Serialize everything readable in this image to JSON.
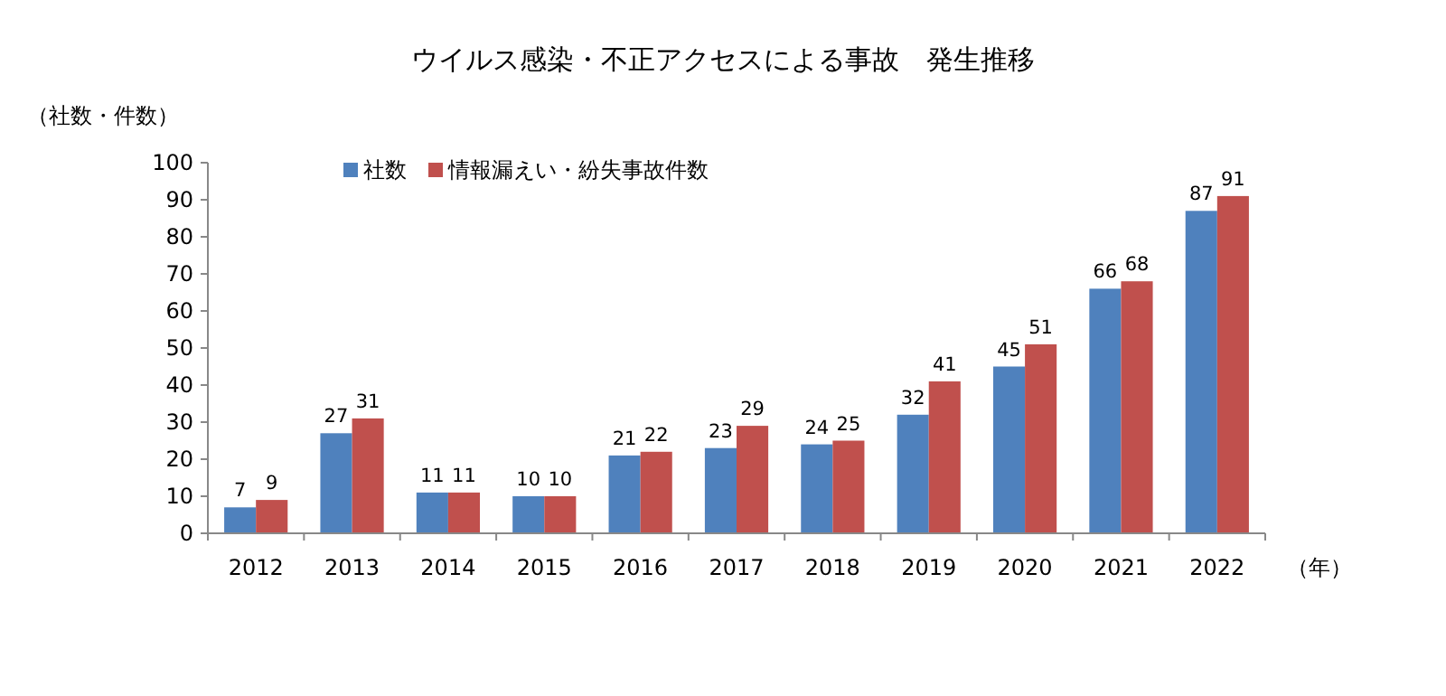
{
  "chart_data": {
    "type": "bar",
    "title": "ウイルス感染・不正アクセスによる事故　発生推移",
    "ylabel": "（社数・件数）",
    "xlabel": "（年）",
    "categories": [
      "2012",
      "2013",
      "2014",
      "2015",
      "2016",
      "2017",
      "2018",
      "2019",
      "2020",
      "2021",
      "2022"
    ],
    "series": [
      {
        "name": "社数",
        "color": "#4f81bd",
        "values": [
          7,
          27,
          11,
          10,
          21,
          23,
          24,
          32,
          45,
          66,
          87
        ]
      },
      {
        "name": "情報漏えい・紛失事故件数",
        "color": "#c0504d",
        "values": [
          9,
          31,
          11,
          10,
          22,
          29,
          25,
          41,
          51,
          68,
          91
        ]
      }
    ],
    "ylim": [
      0,
      100
    ],
    "yticks": [
      0,
      10,
      20,
      30,
      40,
      50,
      60,
      70,
      80,
      90,
      100
    ],
    "data_labels": true,
    "legend": "top left",
    "grid": false
  }
}
